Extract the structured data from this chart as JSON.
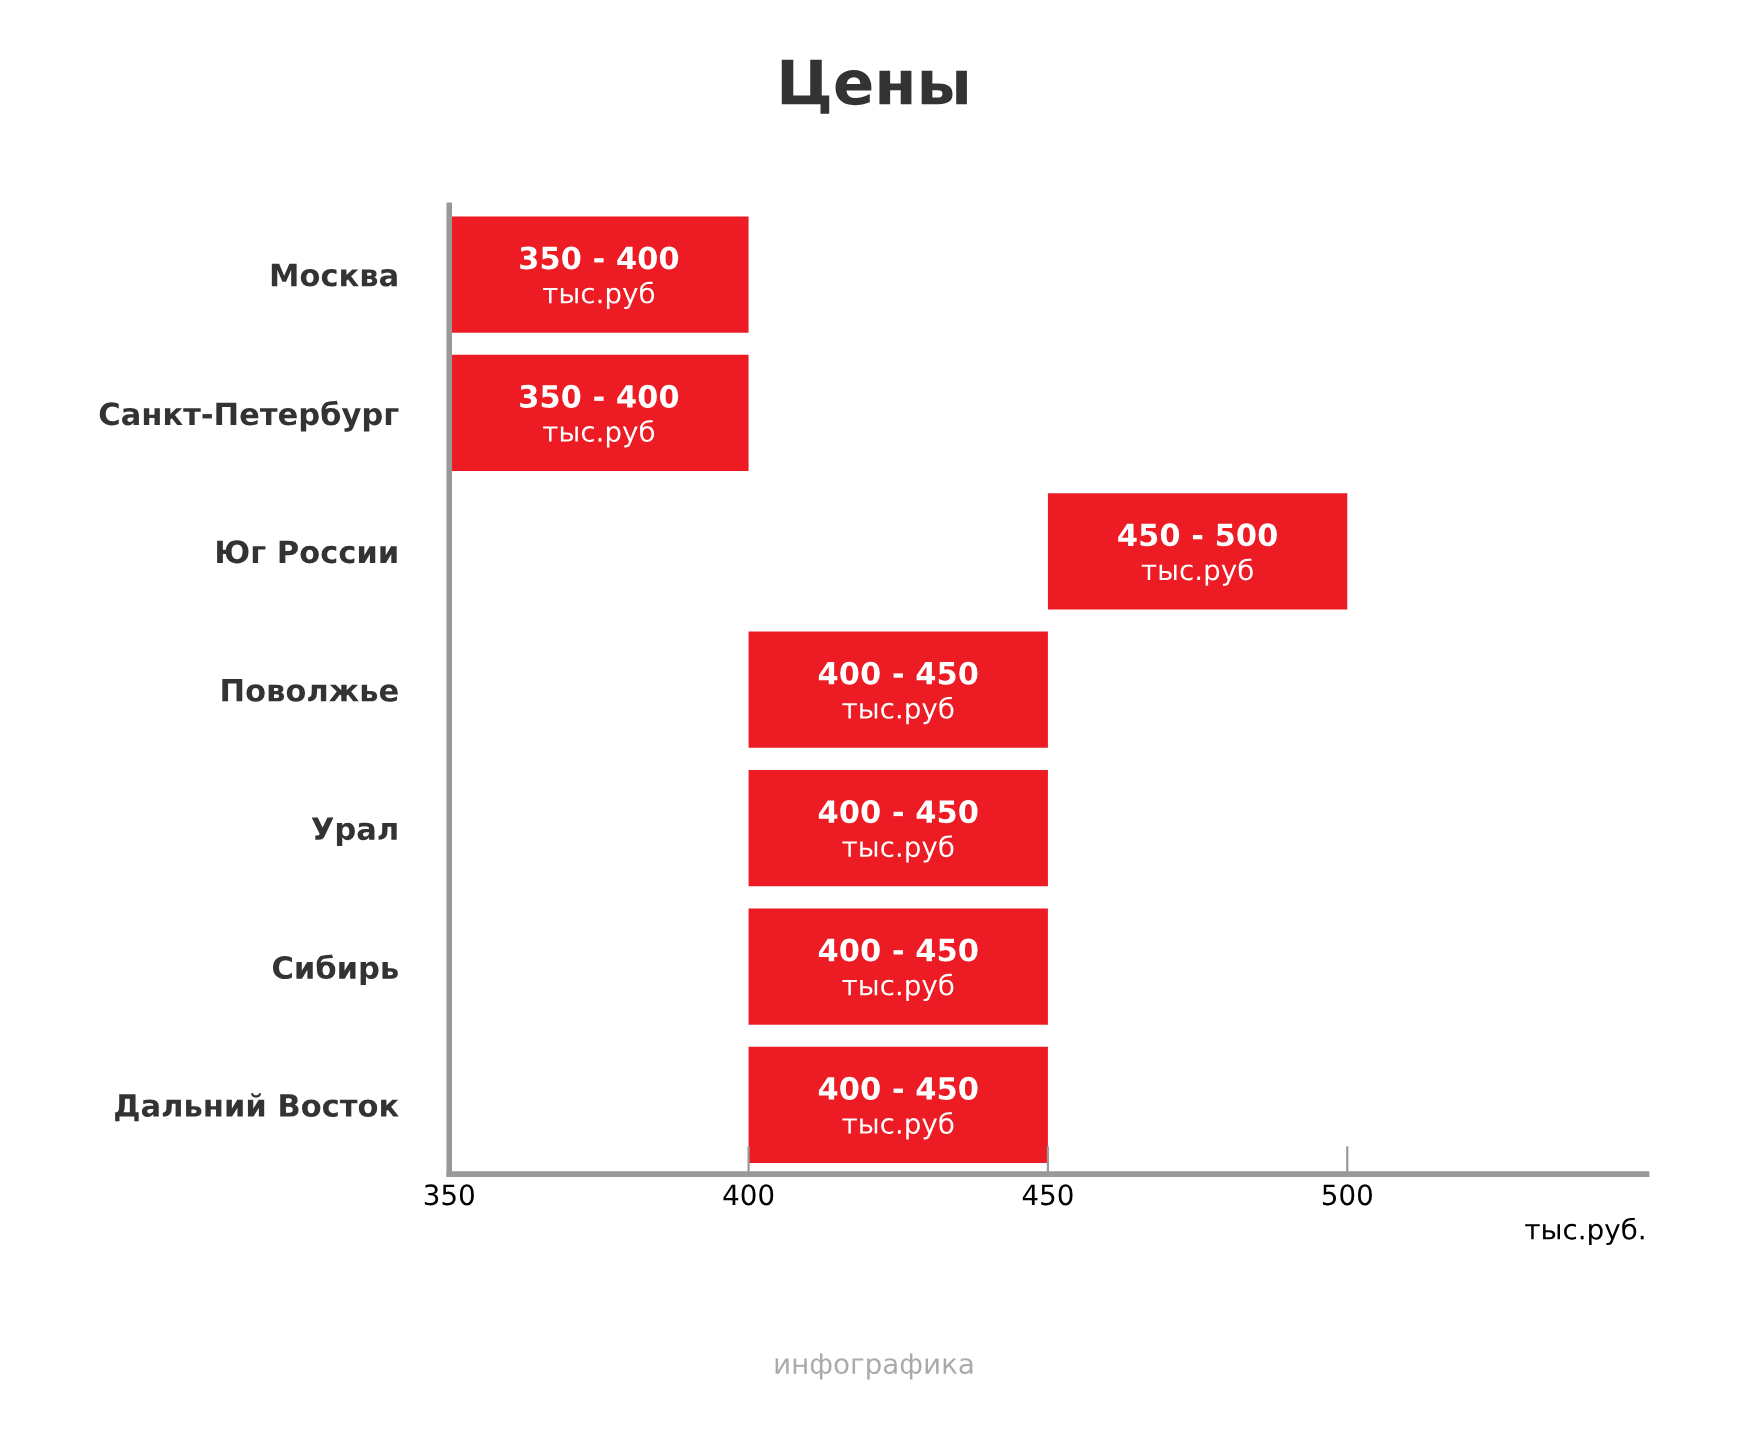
{
  "chart_data": {
    "type": "bar",
    "orientation": "horizontal",
    "title": "Цены",
    "xlabel": "тыс.руб.",
    "categories": [
      "Москва",
      "Санкт-Петербург",
      "Юг России",
      "Поволжье",
      "Урал",
      "Сибирь",
      "Дальний Восток"
    ],
    "base": [
      350,
      350,
      450,
      400,
      400,
      400,
      400
    ],
    "values": [
      50,
      50,
      50,
      50,
      50,
      50,
      50
    ],
    "color": "#ed1c24",
    "xlim": [
      350,
      550
    ],
    "xticks": [
      350,
      400,
      450,
      500
    ],
    "grid": false,
    "annotations": [
      {
        "text": "350 - 400\nтыс.руб",
        "x": 375,
        "y": "Москва"
      },
      {
        "text": "350 - 400\nтыс.руб",
        "x": 375,
        "y": "Санкт-Петербург"
      },
      {
        "text": "450 - 500\nтыс.руб",
        "x": 475,
        "y": "Юг России"
      },
      {
        "text": "400 - 450\nтыс.руб",
        "x": 425,
        "y": "Поволжье"
      },
      {
        "text": "400 - 450\nтыс.руб",
        "x": 425,
        "y": "Урал"
      },
      {
        "text": "400 - 450\nтыс.руб",
        "x": 425,
        "y": "Сибирь"
      },
      {
        "text": "400 - 450\nтыс.руб",
        "x": 425,
        "y": "Дальний Восток"
      },
      "инфографика"
    ]
  }
}
